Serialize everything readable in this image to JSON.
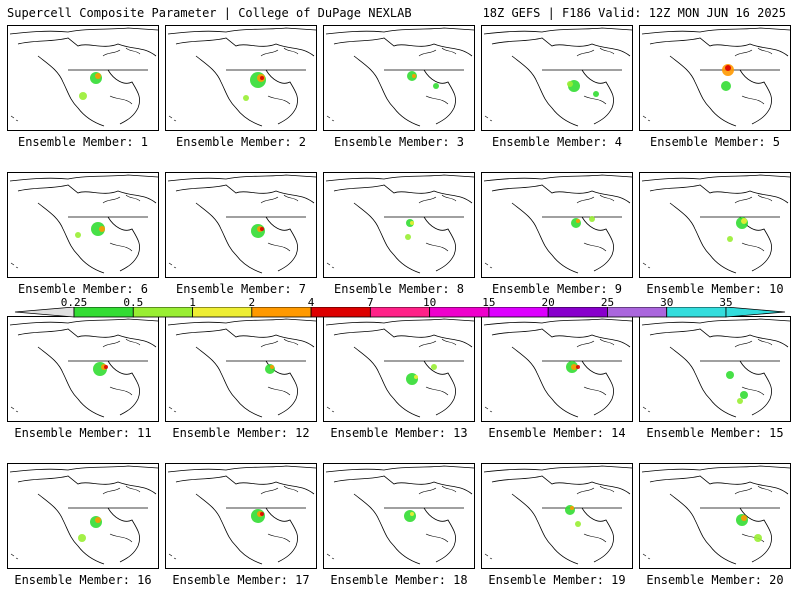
{
  "header": {
    "left": "Supercell Composite Parameter | College of DuPage NEXLAB",
    "right": "18Z GEFS | F186 Valid: 12Z MON JUN 16 2025"
  },
  "colorbar": {
    "labels": [
      "0.25",
      "0.5",
      "1",
      "2",
      "4",
      "7",
      "10",
      "15",
      "20",
      "25",
      "30",
      "35"
    ],
    "colors": [
      "#e0e0e0",
      "#33dd33",
      "#99ee33",
      "#eeee33",
      "#ff9900",
      "#dd0000",
      "#ff2288",
      "#ee00cc",
      "#dd00ff",
      "#8800cc",
      "#aa66dd",
      "#33dddd"
    ]
  },
  "panels": [
    {
      "label": "Ensemble Member: 1"
    },
    {
      "label": "Ensemble Member: 2"
    },
    {
      "label": "Ensemble Member: 3"
    },
    {
      "label": "Ensemble Member: 4"
    },
    {
      "label": "Ensemble Member: 5"
    },
    {
      "label": "Ensemble Member: 6"
    },
    {
      "label": "Ensemble Member: 7"
    },
    {
      "label": "Ensemble Member: 8"
    },
    {
      "label": "Ensemble Member: 9"
    },
    {
      "label": "Ensemble Member: 10"
    },
    {
      "label": "Ensemble Member: 11"
    },
    {
      "label": "Ensemble Member: 12"
    },
    {
      "label": "Ensemble Member: 13"
    },
    {
      "label": "Ensemble Member: 14"
    },
    {
      "label": "Ensemble Member: 15"
    },
    {
      "label": "Ensemble Member: 16"
    },
    {
      "label": "Ensemble Member: 17"
    },
    {
      "label": "Ensemble Member: 18"
    },
    {
      "label": "Ensemble Member: 19"
    },
    {
      "label": "Ensemble Member: 20"
    }
  ]
}
